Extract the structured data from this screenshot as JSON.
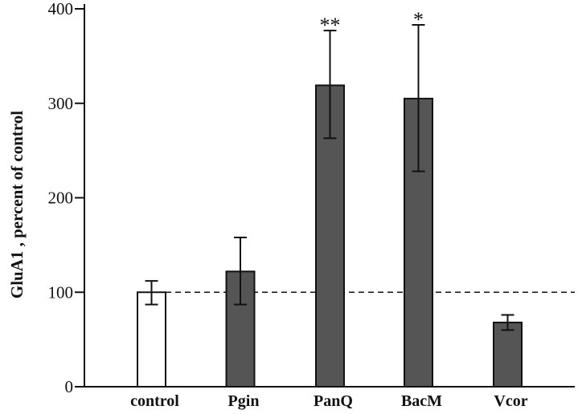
{
  "chart_data": {
    "type": "bar",
    "title": "",
    "xlabel": "",
    "ylabel": "GluA1 , percent of control",
    "ylim": [
      0,
      400
    ],
    "yticks": [
      0,
      100,
      200,
      300,
      400
    ],
    "grid": false,
    "reference_line": {
      "value": 100,
      "style": "dashed"
    },
    "categories": [
      "control",
      "Pgin",
      "PanQ",
      "BacM",
      "Vcor"
    ],
    "values": [
      100,
      122,
      319,
      305,
      68
    ],
    "error_upper": [
      112,
      158,
      377,
      383,
      76
    ],
    "error_lower": [
      87,
      87,
      263,
      228,
      60
    ],
    "annotations": [
      "",
      "",
      "**",
      "*",
      ""
    ],
    "colors": [
      "#ffffff",
      "#555555",
      "#555555",
      "#555555",
      "#555555"
    ],
    "edge_color": "#111111"
  }
}
